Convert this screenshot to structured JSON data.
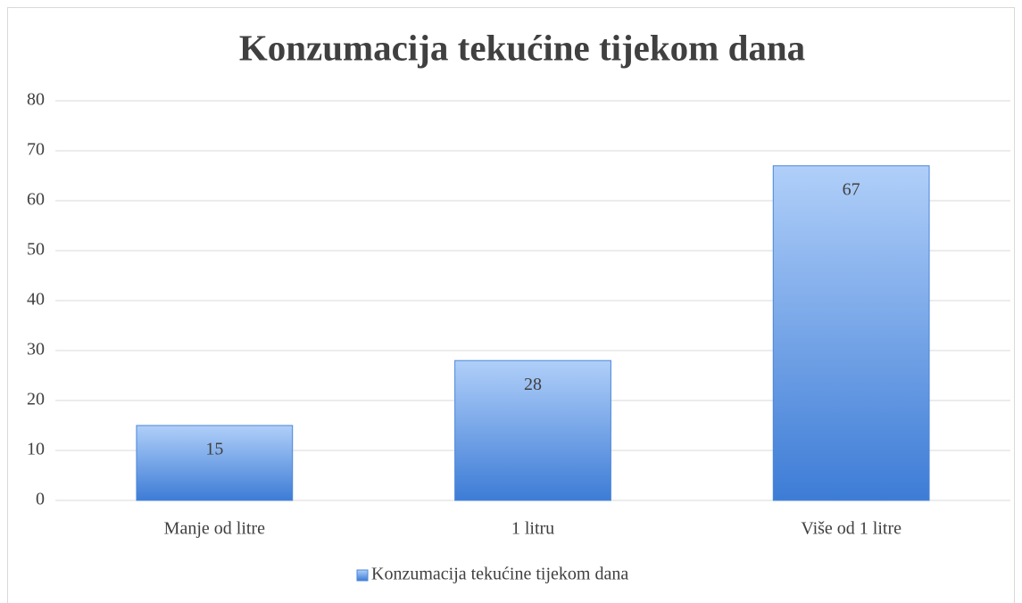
{
  "chart_data": {
    "type": "bar",
    "title": "Konzumacija tekućine tijekom dana",
    "categories": [
      "Manje od litre",
      "1 litru",
      "Više od 1 litre"
    ],
    "series": [
      {
        "name": "Konzumacija tekućine tijekom dana",
        "color": "#4a86d8",
        "values": [
          15,
          28,
          67
        ]
      }
    ],
    "ylim": [
      0,
      80
    ],
    "yticks": [
      0,
      10,
      20,
      30,
      40,
      50,
      60,
      70,
      80
    ],
    "grid": true,
    "legend": "bottom"
  }
}
